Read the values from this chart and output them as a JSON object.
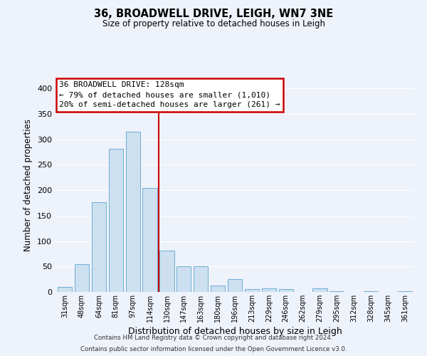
{
  "title": "36, BROADWELL DRIVE, LEIGH, WN7 3NE",
  "subtitle": "Size of property relative to detached houses in Leigh",
  "xlabel": "Distribution of detached houses by size in Leigh",
  "ylabel": "Number of detached properties",
  "bar_color": "#cce0f0",
  "bar_edge_color": "#6daed4",
  "background_color": "#eef2fa",
  "grid_color": "#ffffff",
  "categories": [
    "31sqm",
    "48sqm",
    "64sqm",
    "81sqm",
    "97sqm",
    "114sqm",
    "130sqm",
    "147sqm",
    "163sqm",
    "180sqm",
    "196sqm",
    "213sqm",
    "229sqm",
    "246sqm",
    "262sqm",
    "279sqm",
    "295sqm",
    "312sqm",
    "328sqm",
    "345sqm",
    "361sqm"
  ],
  "values": [
    10,
    54,
    177,
    281,
    315,
    204,
    81,
    51,
    51,
    13,
    25,
    5,
    7,
    5,
    0,
    7,
    2,
    0,
    2,
    0,
    2
  ],
  "ylim": [
    0,
    420
  ],
  "yticks": [
    0,
    50,
    100,
    150,
    200,
    250,
    300,
    350,
    400
  ],
  "property_line_x": 5.5,
  "property_line_color": "#cc0000",
  "annotation_title": "36 BROADWELL DRIVE: 128sqm",
  "annotation_line1": "← 79% of detached houses are smaller (1,010)",
  "annotation_line2": "20% of semi-detached houses are larger (261) →",
  "annotation_box_color": "white",
  "annotation_box_edge": "#cc0000",
  "footer_line1": "Contains HM Land Registry data © Crown copyright and database right 2024.",
  "footer_line2": "Contains public sector information licensed under the Open Government Licence v3.0."
}
